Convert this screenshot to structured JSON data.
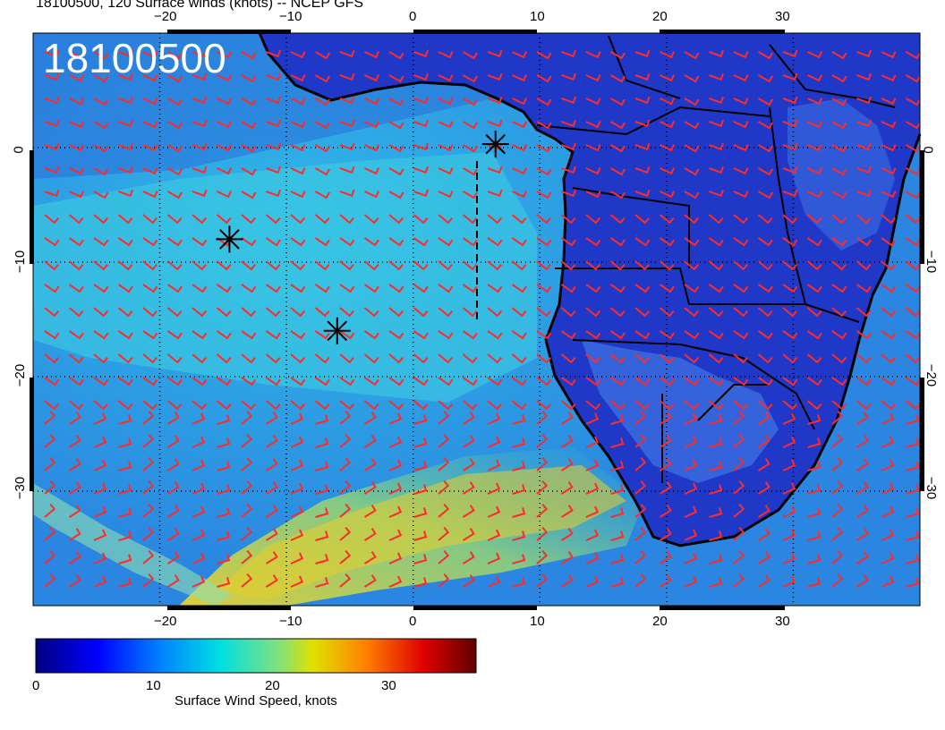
{
  "title": "18100500, 120 Surface winds (knots) -- NCEP GFS",
  "date_stamp": "18100500",
  "map": {
    "lon_range": [
      -30,
      40
    ],
    "lat_range": [
      -40,
      10
    ],
    "top_lon_ticks": [
      "−20",
      "−10",
      "0",
      "10",
      "20",
      "30"
    ],
    "bottom_lon_ticks": [
      "−20",
      "−10",
      "0",
      "10",
      "20",
      "30"
    ],
    "left_lat_ticks": [
      "0",
      "−10",
      "−20",
      "−30"
    ],
    "right_lat_ticks": [
      "0",
      "−10",
      "−20",
      "−30"
    ],
    "wind_barb_color": "#ff2a2a",
    "coastline_color": "#000000",
    "markers": [
      {
        "symbol": "asterisk",
        "lon": 6.5,
        "lat": 0.3
      },
      {
        "symbol": "asterisk",
        "lon": -14.5,
        "lat": -8.0
      },
      {
        "symbol": "asterisk",
        "lon": -6.0,
        "lat": -16.0
      }
    ]
  },
  "colorbar": {
    "label": "Surface Wind Speed, knots",
    "ticks": [
      "0",
      "10",
      "20",
      "30"
    ],
    "range": [
      0,
      38
    ],
    "colors": [
      "#00007f",
      "#0000ff",
      "#0080ff",
      "#00e5e5",
      "#7fe57f",
      "#e5e500",
      "#ff8000",
      "#e50000",
      "#600000"
    ]
  }
}
